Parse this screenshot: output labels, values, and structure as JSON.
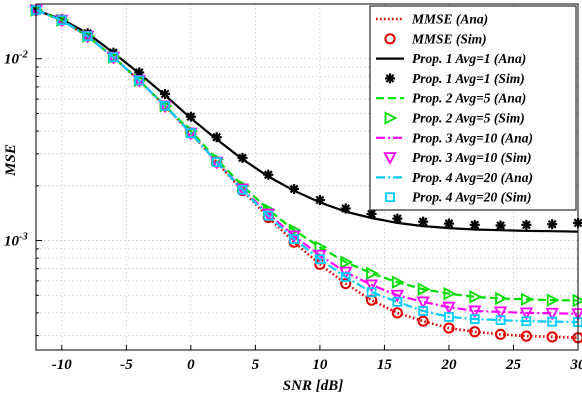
{
  "chart_data": {
    "type": "line",
    "xlabel": "SNR [dB]",
    "ylabel": "MSE",
    "yscale": "log",
    "xlim": [
      -12,
      30
    ],
    "ylim": [
      0.00025,
      0.02
    ],
    "x_ticks": [
      -10,
      -5,
      0,
      5,
      10,
      15,
      20,
      25,
      30
    ],
    "y_ticks": [
      {
        "value": 0.01,
        "base": "10",
        "exp": "-2"
      },
      {
        "value": 0.001,
        "base": "10",
        "exp": "-3"
      }
    ],
    "grid": true,
    "legend_position": "top-right",
    "x": [
      -12,
      -10,
      -8,
      -6,
      -4,
      -2,
      0,
      2,
      4,
      6,
      8,
      10,
      12,
      14,
      16,
      18,
      20,
      22,
      24,
      26,
      28,
      30
    ],
    "series": [
      {
        "name": "MMSE (Ana)",
        "color": "#e00000",
        "line": "dotted",
        "marker": null,
        "values": [
          0.0185,
          0.0163,
          0.0133,
          0.0102,
          0.0076,
          0.0055,
          0.0039,
          0.0027,
          0.00188,
          0.00134,
          0.00098,
          0.00074,
          0.00058,
          0.00047,
          0.0004,
          0.00036,
          0.00033,
          0.000315,
          0.000305,
          0.000298,
          0.000295,
          0.000292
        ]
      },
      {
        "name": "MMSE (Sim)",
        "color": "#e00000",
        "line": "none",
        "marker": "circle",
        "x": [
          -12,
          -10,
          -8,
          -6,
          -4,
          -2,
          0,
          2,
          4,
          6,
          8,
          10,
          12,
          14,
          16,
          18,
          20,
          22,
          24,
          26,
          28,
          30
        ],
        "values": [
          0.0185,
          0.0163,
          0.0133,
          0.0102,
          0.0076,
          0.0055,
          0.0039,
          0.0027,
          0.00188,
          0.00134,
          0.00098,
          0.00074,
          0.00058,
          0.00047,
          0.0004,
          0.00036,
          0.00033,
          0.000315,
          0.000305,
          0.000298,
          0.000295,
          0.000292
        ]
      },
      {
        "name": "Prop. 1 Avg=1 (Ana)",
        "color": "#000000",
        "line": "solid",
        "marker": null,
        "values": [
          0.0185,
          0.0165,
          0.0138,
          0.0108,
          0.0083,
          0.0063,
          0.0047,
          0.0036,
          0.0028,
          0.00225,
          0.00188,
          0.00162,
          0.00144,
          0.00133,
          0.00125,
          0.0012,
          0.00117,
          0.00115,
          0.00114,
          0.00113,
          0.001125,
          0.00112
        ]
      },
      {
        "name": "Prop. 1 Avg=1 (Sim)",
        "color": "#000000",
        "line": "none",
        "marker": "asterisk",
        "x": [
          -12,
          -10,
          -8,
          -6,
          -4,
          -2,
          0,
          2,
          4,
          6,
          8,
          10,
          12,
          14,
          16,
          18,
          20,
          22,
          24,
          26,
          28,
          30
        ],
        "values": [
          0.0185,
          0.0165,
          0.0138,
          0.0108,
          0.0084,
          0.0064,
          0.0048,
          0.0037,
          0.00285,
          0.0023,
          0.00192,
          0.00167,
          0.0015,
          0.0014,
          0.00132,
          0.00127,
          0.00124,
          0.00122,
          0.00121,
          0.00122,
          0.00123,
          0.00125
        ]
      },
      {
        "name": "Prop. 2 Avg=5 (Ana)",
        "color": "#00dd00",
        "line": "dashed",
        "marker": null,
        "values": [
          0.0185,
          0.0163,
          0.0133,
          0.0102,
          0.0076,
          0.0055,
          0.004,
          0.0028,
          0.002,
          0.00148,
          0.00114,
          0.00092,
          0.00076,
          0.00066,
          0.00059,
          0.00054,
          0.00051,
          0.00049,
          0.00048,
          0.000475,
          0.00047,
          0.000468
        ]
      },
      {
        "name": "Prop. 2 Avg=5 (Sim)",
        "color": "#00dd00",
        "line": "none",
        "marker": "triangle-right",
        "x": [
          -12,
          -10,
          -8,
          -6,
          -4,
          -2,
          0,
          2,
          4,
          6,
          8,
          10,
          12,
          14,
          16,
          18,
          20,
          22,
          24,
          26,
          28,
          30
        ],
        "values": [
          0.0185,
          0.0163,
          0.0133,
          0.0102,
          0.0076,
          0.0055,
          0.004,
          0.0028,
          0.002,
          0.00148,
          0.00114,
          0.00092,
          0.00076,
          0.00066,
          0.00059,
          0.00054,
          0.00051,
          0.00049,
          0.00048,
          0.000475,
          0.00047,
          0.000468
        ]
      },
      {
        "name": "Prop. 3 Avg=10 (Ana)",
        "color": "#ff00ff",
        "line": "dashdot",
        "marker": null,
        "values": [
          0.0185,
          0.0163,
          0.0133,
          0.0102,
          0.0076,
          0.0055,
          0.0039,
          0.0027,
          0.00192,
          0.0014,
          0.00106,
          0.00083,
          0.00067,
          0.00057,
          0.0005,
          0.00046,
          0.00043,
          0.00041,
          0.000405,
          0.0004,
          0.000398,
          0.000396
        ]
      },
      {
        "name": "Prop. 3 Avg=10 (Sim)",
        "color": "#ff00ff",
        "line": "none",
        "marker": "triangle-down",
        "x": [
          -12,
          -10,
          -8,
          -6,
          -4,
          -2,
          0,
          2,
          4,
          6,
          8,
          10,
          12,
          14,
          16,
          18,
          20,
          22,
          24,
          26,
          28,
          30
        ],
        "values": [
          0.0185,
          0.0163,
          0.0133,
          0.0102,
          0.0076,
          0.0055,
          0.0039,
          0.0027,
          0.00192,
          0.0014,
          0.00106,
          0.00083,
          0.00067,
          0.00057,
          0.0005,
          0.00046,
          0.00043,
          0.00041,
          0.000405,
          0.0004,
          0.000398,
          0.000396
        ]
      },
      {
        "name": "Prop. 4 Avg=20 (Ana)",
        "color": "#00ccff",
        "line": "dashdot",
        "marker": null,
        "values": [
          0.0185,
          0.0163,
          0.0133,
          0.0102,
          0.0076,
          0.0055,
          0.0039,
          0.0027,
          0.0019,
          0.00137,
          0.00102,
          0.00079,
          0.00063,
          0.00052,
          0.00046,
          0.00041,
          0.00038,
          0.00037,
          0.000365,
          0.00036,
          0.000358,
          0.000356
        ]
      },
      {
        "name": "Prop. 4 Avg=20 (Sim)",
        "color": "#00ccff",
        "line": "none",
        "marker": "square",
        "x": [
          -12,
          -10,
          -8,
          -6,
          -4,
          -2,
          0,
          2,
          4,
          6,
          8,
          10,
          12,
          14,
          16,
          18,
          20,
          22,
          24,
          26,
          28,
          30
        ],
        "values": [
          0.0185,
          0.0163,
          0.0133,
          0.0102,
          0.0076,
          0.0055,
          0.0039,
          0.0027,
          0.0019,
          0.00137,
          0.00102,
          0.00079,
          0.00063,
          0.00052,
          0.00046,
          0.00041,
          0.00038,
          0.00037,
          0.000365,
          0.00036,
          0.000358,
          0.000356
        ]
      }
    ]
  }
}
